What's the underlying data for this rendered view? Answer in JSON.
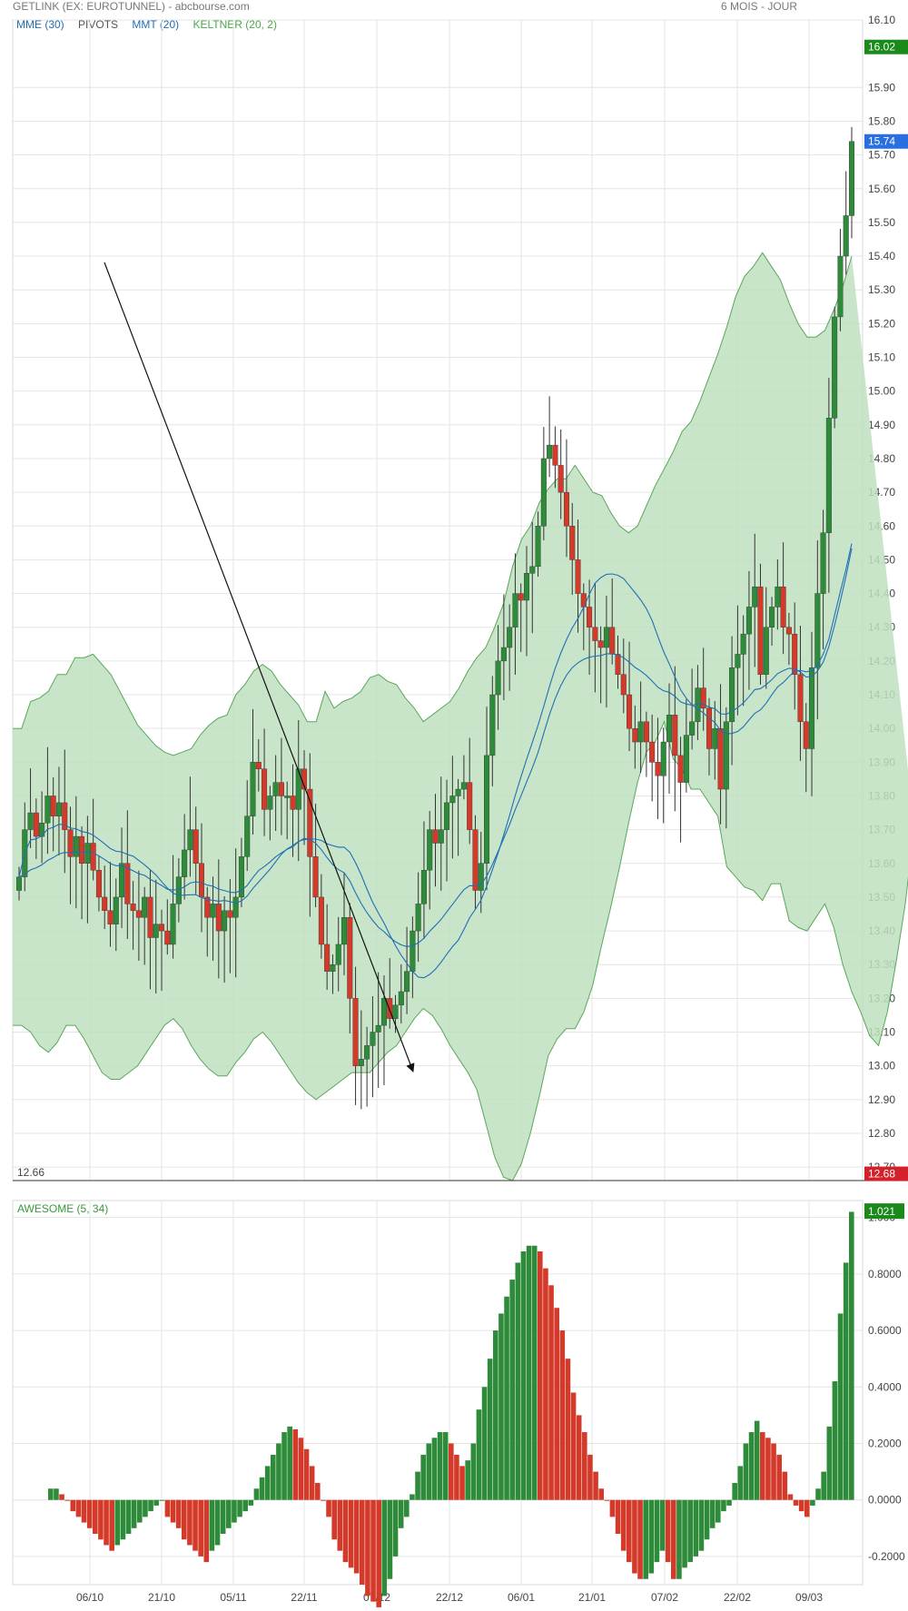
{
  "header": {
    "title": "GETLINK (EX: EUROTUNNEL) - abcbourse.com",
    "period": "6 MOIS - JOUR"
  },
  "legend": [
    {
      "label": "MME (30)",
      "color": "#1f6fb5"
    },
    {
      "label": "PIVOTS",
      "color": "#555555"
    },
    {
      "label": "MMT (20)",
      "color": "#1f6fb5"
    },
    {
      "label": "KELTNER (20, 2)",
      "color": "#4aa84a"
    }
  ],
  "colors": {
    "up": "#2e8b3a",
    "down": "#d43a2a",
    "keltner_fill": "#bfe0bf",
    "keltner_line": "#5aa65a",
    "ma": "#1f6fb5",
    "grid": "#e4e4e4",
    "last_badge": "#1a8a1a",
    "current_badge": "#2a6fe0",
    "low_badge": "#d4202a",
    "ao_badge": "#1a8a1a"
  },
  "chart_data": [
    {
      "type": "candlestick",
      "ylim": [
        12.66,
        16.1
      ],
      "yticks": [
        "16.10",
        "15.90",
        "15.80",
        "15.70",
        "15.60",
        "15.50",
        "15.40",
        "15.30",
        "15.20",
        "15.10",
        "15.00",
        "14.90",
        "14.80",
        "14.70",
        "14.60",
        "14.50",
        "14.40",
        "14.30",
        "14.20",
        "14.10",
        "14.00",
        "13.90",
        "13.80",
        "13.70",
        "13.60",
        "13.50",
        "13.40",
        "13.30",
        "13.20",
        "13.10",
        "13.00",
        "12.90",
        "12.80",
        "12.70"
      ],
      "xticks": [
        "06/10",
        "21/10",
        "05/11",
        "22/11",
        "07/12",
        "22/12",
        "06/01",
        "21/01",
        "07/02",
        "22/02",
        "09/03"
      ],
      "price_labels": {
        "last_high": "16.02",
        "current": "15.74",
        "low": "12.68",
        "low_line": "12.66"
      },
      "low_line": 12.66,
      "close": [
        13.56,
        13.7,
        13.75,
        13.68,
        13.72,
        13.8,
        13.74,
        13.78,
        13.7,
        13.62,
        13.68,
        13.6,
        13.66,
        13.58,
        13.5,
        13.46,
        13.42,
        13.5,
        13.6,
        13.48,
        13.46,
        13.44,
        13.5,
        13.38,
        13.42,
        13.4,
        13.36,
        13.48,
        13.56,
        13.64,
        13.7,
        13.6,
        13.5,
        13.44,
        13.48,
        13.4,
        13.46,
        13.44,
        13.5,
        13.62,
        13.74,
        13.9,
        13.88,
        13.76,
        13.8,
        13.84,
        13.8,
        13.8,
        13.76,
        13.88,
        13.82,
        13.62,
        13.5,
        13.36,
        13.28,
        13.3,
        13.36,
        13.44,
        13.2,
        13.0,
        13.02,
        13.06,
        13.1,
        13.12,
        13.2,
        13.14,
        13.18,
        13.22,
        13.28,
        13.4,
        13.48,
        13.58,
        13.7,
        13.66,
        13.7,
        13.78,
        13.8,
        13.82,
        13.84,
        13.7,
        13.52,
        13.6,
        13.92,
        14.1,
        14.2,
        14.24,
        14.3,
        14.4,
        14.38,
        14.46,
        14.48,
        14.6,
        14.8,
        14.84,
        14.78,
        14.7,
        14.6,
        14.5,
        14.4,
        14.36,
        14.3,
        14.26,
        14.24,
        14.3,
        14.22,
        14.16,
        14.1,
        14.0,
        13.96,
        14.02,
        13.96,
        13.9,
        13.86,
        13.96,
        14.04,
        13.92,
        13.84,
        13.98,
        14.02,
        14.12,
        14.06,
        13.94,
        14.0,
        13.82,
        14.02,
        14.18,
        14.22,
        14.28,
        14.36,
        14.42,
        14.16,
        14.3,
        14.36,
        14.42,
        14.3,
        14.28,
        14.16,
        14.02,
        13.94,
        14.18,
        14.4,
        14.58,
        14.92,
        15.22,
        15.4,
        15.52,
        15.74
      ],
      "keltner_upper": [
        14.0,
        14.0,
        14.08,
        14.09,
        14.11,
        14.16,
        14.16,
        14.21,
        14.21,
        14.22,
        14.19,
        14.16,
        14.11,
        14.06,
        14.01,
        13.98,
        13.95,
        13.93,
        13.92,
        13.93,
        13.94,
        13.98,
        14.01,
        14.03,
        14.04,
        14.1,
        14.13,
        14.17,
        14.19,
        14.17,
        14.13,
        14.1,
        14.07,
        14.02,
        14.02,
        14.11,
        14.06,
        14.08,
        14.09,
        14.11,
        14.15,
        14.16,
        14.14,
        14.13,
        14.09,
        14.06,
        14.02,
        14.04,
        14.06,
        14.08,
        14.12,
        14.17,
        14.21,
        14.24,
        14.3,
        14.37,
        14.48,
        14.56,
        14.6,
        14.67,
        14.71,
        14.74,
        14.74,
        14.78,
        14.74,
        14.7,
        14.69,
        14.64,
        14.6,
        14.58,
        14.6,
        14.66,
        14.72,
        14.77,
        14.82,
        14.88,
        14.91,
        14.97,
        15.04,
        15.11,
        15.19,
        15.28,
        15.34,
        15.37,
        15.41,
        15.37,
        15.33,
        15.26,
        15.2,
        15.16,
        15.16,
        15.18,
        15.24,
        15.31,
        15.4
      ],
      "keltner_lower": [
        13.12,
        13.12,
        13.1,
        13.06,
        13.04,
        13.07,
        13.12,
        13.12,
        13.08,
        13.03,
        12.98,
        12.96,
        12.96,
        12.98,
        13.0,
        13.04,
        13.08,
        13.12,
        13.14,
        13.11,
        13.06,
        13.02,
        12.99,
        12.97,
        12.97,
        13.01,
        13.04,
        13.08,
        13.1,
        13.07,
        13.03,
        12.99,
        12.95,
        12.92,
        12.9,
        12.92,
        12.94,
        12.96,
        12.98,
        12.98,
        12.98,
        13.01,
        13.04,
        13.06,
        13.1,
        13.14,
        13.17,
        13.15,
        13.11,
        13.06,
        13.02,
        12.98,
        12.93,
        12.83,
        12.73,
        12.67,
        12.66,
        12.71,
        12.8,
        12.91,
        13.03,
        13.08,
        13.11,
        13.11,
        13.16,
        13.24,
        13.36,
        13.47,
        13.59,
        13.72,
        13.84,
        13.93,
        13.96,
        14.02,
        13.91,
        13.88,
        13.82,
        13.82,
        13.78,
        13.74,
        13.59,
        13.56,
        13.53,
        13.52,
        13.49,
        13.54,
        13.54,
        13.43,
        13.41,
        13.4,
        13.44,
        13.48,
        13.41,
        13.3,
        13.22,
        13.16,
        13.09,
        13.06,
        13.16,
        13.31,
        13.48,
        13.71
      ]
    },
    {
      "type": "bar",
      "name": "AWESOME (5, 34)",
      "ylim": [
        -0.3,
        1.06
      ],
      "yticks": [
        "1.000",
        "0.8000",
        "0.6000",
        "0.4000",
        "0.2000",
        "0.0000",
        "-0.2000"
      ],
      "badge": "1.021",
      "values": [
        0.04,
        0.04,
        0.02,
        0.0,
        -0.04,
        -0.06,
        -0.08,
        -0.1,
        -0.12,
        -0.14,
        -0.16,
        -0.18,
        -0.16,
        -0.14,
        -0.12,
        -0.1,
        -0.08,
        -0.06,
        -0.04,
        -0.02,
        0.0,
        -0.06,
        -0.08,
        -0.1,
        -0.14,
        -0.16,
        -0.18,
        -0.2,
        -0.22,
        -0.18,
        -0.16,
        -0.12,
        -0.1,
        -0.08,
        -0.06,
        -0.04,
        -0.02,
        0.04,
        0.08,
        0.12,
        0.16,
        0.2,
        0.24,
        0.26,
        0.25,
        0.22,
        0.18,
        0.12,
        0.06,
        0.0,
        -0.06,
        -0.14,
        -0.18,
        -0.22,
        -0.24,
        -0.26,
        -0.3,
        -0.34,
        -0.36,
        -0.38,
        -0.34,
        -0.28,
        -0.2,
        -0.1,
        -0.06,
        0.02,
        0.1,
        0.16,
        0.2,
        0.22,
        0.24,
        0.24,
        0.2,
        0.16,
        0.12,
        0.14,
        0.2,
        0.32,
        0.4,
        0.5,
        0.6,
        0.66,
        0.72,
        0.78,
        0.84,
        0.88,
        0.9,
        0.9,
        0.88,
        0.82,
        0.76,
        0.68,
        0.6,
        0.5,
        0.38,
        0.3,
        0.24,
        0.16,
        0.1,
        0.04,
        0.0,
        -0.06,
        -0.12,
        -0.18,
        -0.22,
        -0.26,
        -0.28,
        -0.28,
        -0.26,
        -0.22,
        -0.18,
        -0.22,
        -0.28,
        -0.28,
        -0.24,
        -0.22,
        -0.2,
        -0.18,
        -0.14,
        -0.1,
        -0.08,
        -0.04,
        -0.02,
        0.06,
        0.12,
        0.2,
        0.24,
        0.28,
        0.24,
        0.22,
        0.2,
        0.16,
        0.1,
        0.02,
        -0.02,
        -0.04,
        -0.06,
        -0.02,
        0.04,
        0.1,
        0.26,
        0.42,
        0.66,
        0.84,
        1.02
      ]
    }
  ]
}
